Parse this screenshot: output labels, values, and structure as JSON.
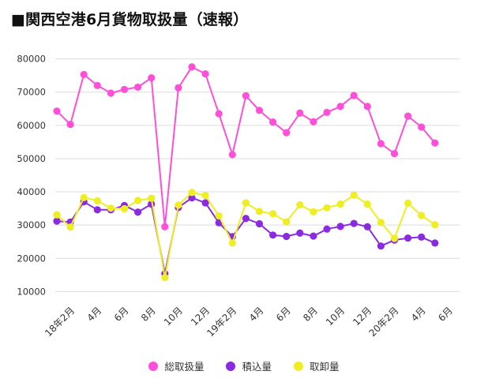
{
  "chart_data": {
    "type": "line",
    "title": "■関西空港6月貨物取扱量（速報）",
    "x_tick_labels": [
      "18年2月",
      "4月",
      "6月",
      "8月",
      "10月",
      "12月",
      "19年2月",
      "4月",
      "6月",
      "8月",
      "10月",
      "12月",
      "20年2月",
      "4月",
      "6月"
    ],
    "y_ticks": [
      10000,
      20000,
      30000,
      40000,
      50000,
      60000,
      70000,
      80000
    ],
    "ylim": [
      7000,
      83000
    ],
    "grid": true,
    "legend_position": "bottom",
    "months": [
      "18年1月",
      "18年2月",
      "18年3月",
      "18年4月",
      "18年5月",
      "18年6月",
      "18年7月",
      "18年8月",
      "18年9月",
      "18年10月",
      "18年11月",
      "18年12月",
      "19年1月",
      "19年2月",
      "19年3月",
      "19年4月",
      "19年5月",
      "19年6月",
      "19年7月",
      "19年8月",
      "19年9月",
      "19年10月",
      "19年11月",
      "19年12月",
      "20年1月",
      "20年2月",
      "20年3月",
      "20年4月",
      "20年5月",
      "20年6月"
    ],
    "series": [
      {
        "name": "総取扱量",
        "color": "#ff4fd8",
        "values": [
          64300,
          60300,
          75300,
          72000,
          69700,
          70800,
          71500,
          74300,
          29500,
          71300,
          77600,
          75500,
          63500,
          51200,
          68900,
          64500,
          61000,
          57800,
          63700,
          61100,
          63900,
          65700,
          69000,
          65700,
          54500,
          51500,
          62800,
          59500,
          54700,
          null
        ]
      },
      {
        "name": "積込量",
        "color": "#8a2be2",
        "values": [
          31200,
          30900,
          37000,
          34600,
          34600,
          35900,
          33900,
          36300,
          15400,
          35300,
          38200,
          36700,
          30700,
          26500,
          32000,
          30400,
          27000,
          26600,
          27600,
          26700,
          28800,
          29600,
          30500,
          29500,
          23700,
          25500,
          26100,
          26400,
          24600,
          null
        ]
      },
      {
        "name": "取卸量",
        "color": "#eeee22",
        "values": [
          33100,
          29400,
          38300,
          37300,
          35100,
          34900,
          37400,
          38100,
          14200,
          36000,
          39800,
          38900,
          32800,
          24600,
          36700,
          34100,
          33400,
          31000,
          36100,
          34000,
          35200,
          36300,
          39000,
          36300,
          30800,
          26000,
          36600,
          32900,
          30100,
          null
        ]
      }
    ]
  }
}
